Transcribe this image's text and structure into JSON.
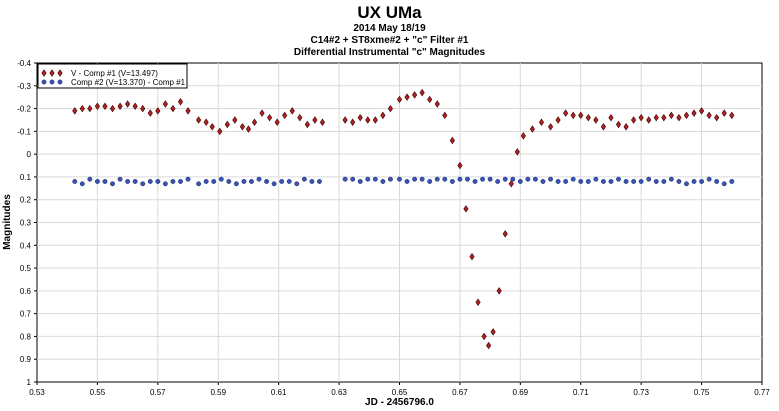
{
  "chart_data": {
    "type": "scatter",
    "title": "UX UMa",
    "subtitles": [
      "2014 May 18/19",
      "C14#2 + ST8xme#2 + \"c\" Filter #1",
      "Differential Instrumental \"c\" Magnitudes"
    ],
    "xlabel": "JD - 2456796.0",
    "ylabel": "Magnitudes",
    "xlim": [
      0.53,
      0.77
    ],
    "ylim": [
      -0.4,
      1.0
    ],
    "y_inverted": true,
    "x_ticks": [
      "0.53",
      "0.55",
      "0.57",
      "0.59",
      "0.61",
      "0.63",
      "0.65",
      "0.67",
      "0.69",
      "0.71",
      "0.73",
      "0.75",
      "0.77"
    ],
    "y_ticks": [
      "-0.4",
      "-0.3",
      "-0.2",
      "-0.1",
      "0",
      "0.1",
      "0.2",
      "0.3",
      "0.4",
      "0.5",
      "0.6",
      "0.7",
      "0.8",
      "0.9",
      "1"
    ],
    "grid": true,
    "legend_position": "top-left",
    "series": [
      {
        "name": "V - Comp #1 (V=13.497)",
        "color": "#b22222",
        "marker": "diamond",
        "x": [
          0.5425,
          0.545,
          0.5475,
          0.55,
          0.5525,
          0.555,
          0.5575,
          0.56,
          0.5625,
          0.565,
          0.5675,
          0.57,
          0.5725,
          0.575,
          0.5775,
          0.58,
          0.5835,
          0.586,
          0.588,
          0.5905,
          0.593,
          0.5955,
          0.598,
          0.6,
          0.602,
          0.6045,
          0.607,
          0.6095,
          0.612,
          0.6145,
          0.617,
          0.6195,
          0.622,
          0.6245,
          0.632,
          0.6345,
          0.637,
          0.6395,
          0.642,
          0.6445,
          0.647,
          0.65,
          0.6525,
          0.655,
          0.6575,
          0.66,
          0.6625,
          0.665,
          0.6675,
          0.67,
          0.672,
          0.674,
          0.676,
          0.678,
          0.6795,
          0.681,
          0.683,
          0.685,
          0.687,
          0.689,
          0.691,
          0.694,
          0.697,
          0.7,
          0.7025,
          0.705,
          0.7075,
          0.71,
          0.7125,
          0.715,
          0.7175,
          0.72,
          0.7225,
          0.725,
          0.7275,
          0.73,
          0.7325,
          0.735,
          0.7375,
          0.74,
          0.7425,
          0.745,
          0.7475,
          0.75,
          0.7525,
          0.755,
          0.7575,
          0.76
        ],
        "y": [
          -0.19,
          -0.2,
          -0.2,
          -0.21,
          -0.21,
          -0.2,
          -0.21,
          -0.22,
          -0.21,
          -0.2,
          -0.18,
          -0.19,
          -0.22,
          -0.2,
          -0.23,
          -0.19,
          -0.15,
          -0.14,
          -0.12,
          -0.1,
          -0.13,
          -0.15,
          -0.12,
          -0.11,
          -0.14,
          -0.18,
          -0.16,
          -0.14,
          -0.17,
          -0.19,
          -0.16,
          -0.13,
          -0.15,
          -0.14,
          -0.15,
          -0.14,
          -0.16,
          -0.15,
          -0.15,
          -0.17,
          -0.2,
          -0.24,
          -0.25,
          -0.26,
          -0.27,
          -0.24,
          -0.22,
          -0.17,
          -0.06,
          0.05,
          0.24,
          0.45,
          0.65,
          0.8,
          0.84,
          0.78,
          0.6,
          0.35,
          0.13,
          -0.01,
          -0.08,
          -0.11,
          -0.14,
          -0.12,
          -0.15,
          -0.18,
          -0.17,
          -0.17,
          -0.16,
          -0.15,
          -0.12,
          -0.16,
          -0.13,
          -0.12,
          -0.15,
          -0.16,
          -0.15,
          -0.16,
          -0.16,
          -0.17,
          -0.16,
          -0.17,
          -0.18,
          -0.19,
          -0.17,
          -0.16,
          -0.18,
          -0.17
        ]
      },
      {
        "name": "Comp #2 (V=13.370) - Comp #1",
        "color": "#3b53b5",
        "marker": "circle",
        "x": [
          0.5425,
          0.545,
          0.5475,
          0.55,
          0.5525,
          0.555,
          0.5575,
          0.56,
          0.5625,
          0.565,
          0.5675,
          0.57,
          0.5725,
          0.575,
          0.5775,
          0.58,
          0.5835,
          0.586,
          0.5885,
          0.591,
          0.5935,
          0.596,
          0.5985,
          0.601,
          0.6035,
          0.606,
          0.6085,
          0.611,
          0.6135,
          0.616,
          0.6185,
          0.621,
          0.6235,
          0.632,
          0.6345,
          0.637,
          0.6395,
          0.642,
          0.6445,
          0.647,
          0.65,
          0.6525,
          0.655,
          0.6575,
          0.66,
          0.6625,
          0.665,
          0.6675,
          0.67,
          0.6725,
          0.675,
          0.6775,
          0.68,
          0.6825,
          0.685,
          0.6875,
          0.69,
          0.6925,
          0.695,
          0.6975,
          0.7,
          0.7025,
          0.705,
          0.7075,
          0.71,
          0.7125,
          0.715,
          0.7175,
          0.72,
          0.7225,
          0.725,
          0.7275,
          0.73,
          0.7325,
          0.735,
          0.7375,
          0.74,
          0.7425,
          0.745,
          0.7475,
          0.75,
          0.7525,
          0.755,
          0.7575,
          0.76
        ],
        "y": [
          0.12,
          0.13,
          0.11,
          0.12,
          0.12,
          0.13,
          0.11,
          0.12,
          0.12,
          0.13,
          0.12,
          0.12,
          0.13,
          0.12,
          0.12,
          0.11,
          0.13,
          0.12,
          0.12,
          0.11,
          0.12,
          0.13,
          0.12,
          0.12,
          0.11,
          0.12,
          0.13,
          0.12,
          0.12,
          0.13,
          0.11,
          0.12,
          0.12,
          0.11,
          0.11,
          0.12,
          0.11,
          0.11,
          0.12,
          0.11,
          0.11,
          0.12,
          0.11,
          0.11,
          0.12,
          0.11,
          0.11,
          0.12,
          0.11,
          0.11,
          0.12,
          0.11,
          0.11,
          0.12,
          0.11,
          0.11,
          0.12,
          0.11,
          0.11,
          0.12,
          0.11,
          0.12,
          0.12,
          0.11,
          0.12,
          0.12,
          0.11,
          0.12,
          0.12,
          0.11,
          0.12,
          0.12,
          0.12,
          0.11,
          0.12,
          0.12,
          0.11,
          0.12,
          0.13,
          0.12,
          0.12,
          0.11,
          0.12,
          0.13,
          0.12
        ]
      }
    ]
  }
}
